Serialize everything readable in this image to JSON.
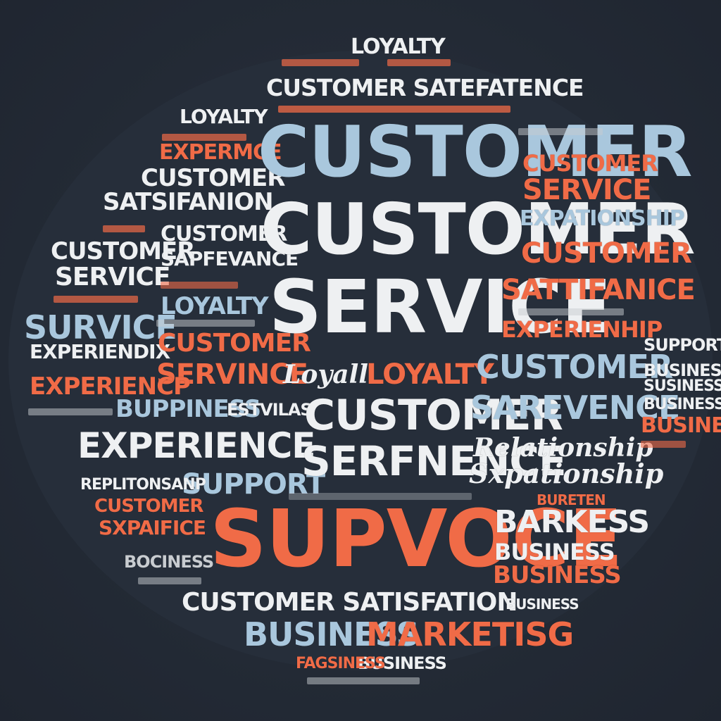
{
  "colors": {
    "background": "#232a35",
    "orange": "#f06b47",
    "white": "#eef0f2",
    "light_blue": "#a9c7dd",
    "gray": "#c8ccd0"
  },
  "words": [
    {
      "text": "LOYALTY"
    },
    {
      "text": "CUSTOMER SATEFATENCE"
    },
    {
      "text": "LOYALTY"
    },
    {
      "text": "EXPERMCE"
    },
    {
      "text": "CUSTOMER"
    },
    {
      "text": "SATSIFANION"
    },
    {
      "text": "CUSTOMER"
    },
    {
      "text": "SAPFEVANCE"
    },
    {
      "text": "CUSTOMER"
    },
    {
      "text": "SERVICE"
    },
    {
      "text": "LOYALTY"
    },
    {
      "text": "SURVICE"
    },
    {
      "text": "EXPERIENDIX"
    },
    {
      "text": "CUSTOMER"
    },
    {
      "text": "SERVINCE"
    },
    {
      "text": "EXPERIENCP"
    },
    {
      "text": "BUPPINESS"
    },
    {
      "text": "ESTVILAS"
    },
    {
      "text": "EXPERIENCE"
    },
    {
      "text": "SUPPORT"
    },
    {
      "text": "REPLITONSANP"
    },
    {
      "text": "CUSTOMER"
    },
    {
      "text": "SXPAIFICE"
    },
    {
      "text": "BOCINESS"
    },
    {
      "text": "CUSTOMER"
    },
    {
      "text": "CUSTOMER"
    },
    {
      "text": "SERVICE"
    },
    {
      "text": "Loyall"
    },
    {
      "text": "LOYALTY"
    },
    {
      "text": "CUSTOMER"
    },
    {
      "text": "SERFNENCE"
    },
    {
      "text": "SUPVOCE"
    },
    {
      "text": "CUSTOMER SATISFATION"
    },
    {
      "text": "BUSINESS"
    },
    {
      "text": "MARKETISG"
    },
    {
      "text": "BUSINESS"
    },
    {
      "text": "FAGSINESS"
    },
    {
      "text": "CUSTOMER"
    },
    {
      "text": "SERVICE"
    },
    {
      "text": "EXPATIONSHIP"
    },
    {
      "text": "CUSTOMER"
    },
    {
      "text": "SATTIFANICE"
    },
    {
      "text": "EXPERIENHIP"
    },
    {
      "text": "CUSTOMER"
    },
    {
      "text": "SAREVENCE"
    },
    {
      "text": "Relationship"
    },
    {
      "text": "Sxpationship"
    },
    {
      "text": "BARKESS"
    },
    {
      "text": "BUSINESS"
    },
    {
      "text": "BUSINESS"
    },
    {
      "text": "BUSINESS"
    },
    {
      "text": "SUPPORTS"
    },
    {
      "text": "BUSINESS"
    },
    {
      "text": "SUSINESS"
    },
    {
      "text": "BUSINESS"
    },
    {
      "text": "BUSINESS"
    },
    {
      "text": "BURETEN"
    }
  ]
}
